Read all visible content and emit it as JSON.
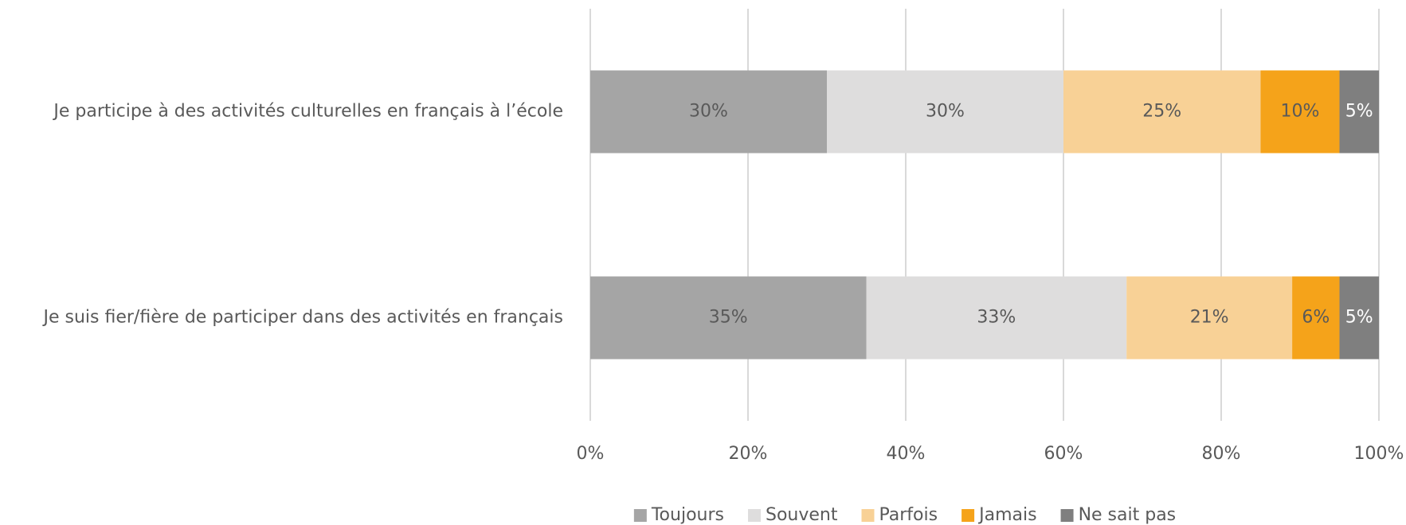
{
  "chart_data": {
    "type": "stacked_barh",
    "categories": [
      "Je participe à des activités culturelles en français à l’école",
      "Je suis fier/fière de participer dans des activités en français"
    ],
    "series": [
      {
        "name": "Toujours",
        "color": "#a5a5a5",
        "values": [
          30,
          35
        ],
        "value_labels": [
          "30%",
          "35%"
        ]
      },
      {
        "name": "Souvent",
        "color": "#dedddd",
        "values": [
          30,
          33
        ],
        "value_labels": [
          "30%",
          "33%"
        ]
      },
      {
        "name": "Parfois",
        "color": "#f8d196",
        "values": [
          25,
          21
        ],
        "value_labels": [
          "25%",
          "21%"
        ]
      },
      {
        "name": "Jamais",
        "color": "#f5a31a",
        "values": [
          10,
          6
        ],
        "value_labels": [
          "10%",
          "6%"
        ]
      },
      {
        "name": "Ne sait pas",
        "color": "#7f7f7f",
        "values": [
          5,
          5
        ],
        "value_labels": [
          "5%",
          "5%"
        ]
      }
    ],
    "xlim": [
      0,
      100
    ],
    "xticks": [
      {
        "value": 0,
        "label": "0%"
      },
      {
        "value": 20,
        "label": "20%"
      },
      {
        "value": 40,
        "label": "40%"
      },
      {
        "value": 60,
        "label": "60%"
      },
      {
        "value": 80,
        "label": "80%"
      },
      {
        "value": 100,
        "label": "100%"
      }
    ],
    "grid": true,
    "legend": "bottom"
  }
}
